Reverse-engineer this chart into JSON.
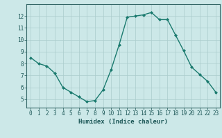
{
  "x": [
    0,
    1,
    2,
    3,
    4,
    5,
    6,
    7,
    8,
    9,
    10,
    11,
    12,
    13,
    14,
    15,
    16,
    17,
    18,
    19,
    20,
    21,
    22,
    23
  ],
  "y": [
    8.5,
    8.0,
    7.8,
    7.2,
    6.0,
    5.6,
    5.2,
    4.8,
    4.9,
    5.8,
    7.5,
    9.6,
    11.9,
    12.0,
    12.1,
    12.3,
    11.7,
    11.7,
    10.4,
    9.1,
    7.7,
    7.1,
    6.5,
    5.6
  ],
  "xlabel": "Humidex (Indice chaleur)",
  "xlim": [
    -0.5,
    23.5
  ],
  "ylim": [
    4.3,
    13.0
  ],
  "yticks": [
    5,
    6,
    7,
    8,
    9,
    10,
    11,
    12
  ],
  "xticks": [
    0,
    1,
    2,
    3,
    4,
    5,
    6,
    7,
    8,
    9,
    10,
    11,
    12,
    13,
    14,
    15,
    16,
    17,
    18,
    19,
    20,
    21,
    22,
    23
  ],
  "line_color": "#1a7a6e",
  "marker_color": "#1a7a6e",
  "bg_color": "#cce8e8",
  "grid_color": "#aacccc",
  "axis_color": "#336666",
  "label_color": "#1a5555",
  "xlabel_fontsize": 6.5,
  "tick_fontsize": 5.5
}
